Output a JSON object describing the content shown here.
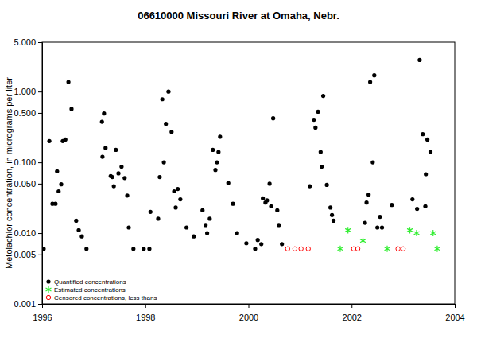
{
  "chart_data": {
    "type": "scatter",
    "title": "06610000 Missouri River at Omaha, Nebr.",
    "y_label": "Metolachlor concentration, in micrograms per liter",
    "log": "y",
    "grid": false,
    "legend": "lower left",
    "xlim": [
      1996,
      2004
    ],
    "xticks": [
      1996,
      1998,
      2000,
      2002,
      2004
    ],
    "ylim": [
      0.001,
      5
    ],
    "yticks": [
      0.001,
      0.005,
      {
        "value": 0.01,
        "label": "0.010"
      },
      {
        "value": 0.05,
        "label": "0.050"
      },
      {
        "value": 0.1,
        "label": "0.100"
      },
      {
        "value": 0.5,
        "label": "0.500"
      },
      {
        "value": 1,
        "label": "1.000"
      },
      {
        "value": 5,
        "label": "5.000"
      }
    ],
    "series": [
      {
        "name": "Quantified concentrations",
        "color": "#000000",
        "marker": "circle",
        "x": [
          1996.03,
          1996.14,
          1996.2,
          1996.26,
          1996.29,
          1996.32,
          1996.37,
          1996.4,
          1996.45,
          1996.51,
          1996.57,
          1996.66,
          1996.71,
          1996.77,
          1996.86,
          1997.16,
          1997.2,
          1997.23,
          1997.17,
          1997.33,
          1997.36,
          1997.39,
          1997.43,
          1997.48,
          1997.54,
          1997.6,
          1997.65,
          1997.68,
          1997.77,
          1997.97,
          1998.08,
          1998.1,
          1998.25,
          1998.28,
          1998.33,
          1998.36,
          1998.4,
          1998.45,
          1998.51,
          1998.56,
          1998.59,
          1998.63,
          1998.68,
          1998.8,
          1998.94,
          1999.11,
          1999.17,
          1999.2,
          1999.25,
          1999.31,
          1999.36,
          1999.39,
          1999.42,
          1999.45,
          1999.61,
          1999.7,
          1999.78,
          1999.96,
          2000.13,
          2000.18,
          2000.25,
          2000.28,
          2000.33,
          2000.36,
          2000.41,
          2000.44,
          2000.48,
          2000.56,
          2000.59,
          2000.65,
          2001.19,
          2001.27,
          2001.3,
          2001.35,
          2001.4,
          2001.42,
          2001.45,
          2001.52,
          2001.59,
          2001.62,
          2001.65,
          2002.26,
          2002.29,
          2002.33,
          2002.36,
          2002.41,
          2002.44,
          2002.5,
          2002.55,
          2002.59,
          2002.78,
          2003.18,
          2003.27,
          2003.32,
          2003.38,
          2003.43,
          2003.44,
          2003.47,
          2003.53
        ],
        "values": [
          0.006,
          0.2,
          0.026,
          0.026,
          0.075,
          0.039,
          0.049,
          0.2,
          0.21,
          1.37,
          0.57,
          0.015,
          0.011,
          0.009,
          0.006,
          0.375,
          0.49,
          0.16,
          0.12,
          0.064,
          0.062,
          0.046,
          0.15,
          0.07,
          0.087,
          0.06,
          0.034,
          0.012,
          0.006,
          0.006,
          0.006,
          0.02,
          0.016,
          0.062,
          0.78,
          0.1,
          0.35,
          1.0,
          0.27,
          0.039,
          0.023,
          0.042,
          0.03,
          0.012,
          0.009,
          0.021,
          0.013,
          0.01,
          0.016,
          0.15,
          0.078,
          0.1,
          0.14,
          0.23,
          0.051,
          0.026,
          0.01,
          0.0072,
          0.006,
          0.008,
          0.007,
          0.031,
          0.027,
          0.029,
          0.05,
          0.024,
          0.42,
          0.021,
          0.013,
          0.007,
          0.046,
          0.4,
          0.31,
          0.52,
          0.14,
          0.087,
          0.87,
          0.048,
          0.023,
          0.018,
          0.015,
          0.014,
          0.027,
          0.035,
          1.37,
          0.1,
          1.7,
          0.012,
          0.017,
          0.012,
          0.025,
          0.03,
          0.022,
          2.8,
          0.25,
          0.024,
          0.068,
          0.21,
          0.14
        ]
      },
      {
        "name": "Estimated concentrations",
        "color": "#33ee33",
        "marker": "asterisk",
        "x": [
          2001.78,
          2001.93,
          2002.22,
          2002.69,
          2003.13,
          2003.26,
          2003.58,
          2003.66
        ],
        "values": [
          0.006,
          0.011,
          0.0078,
          0.006,
          0.011,
          0.01,
          0.01,
          0.006
        ]
      },
      {
        "name": "Censored concentrations, less thans",
        "color": "#ff0000",
        "marker": "open_circle",
        "x": [
          2000.76,
          2000.9,
          2001.02,
          2001.16,
          2002.04,
          2002.12,
          2002.9,
          2003.0
        ],
        "values": [
          0.006,
          0.006,
          0.006,
          0.006,
          0.006,
          0.006,
          0.006,
          0.006
        ]
      }
    ]
  }
}
